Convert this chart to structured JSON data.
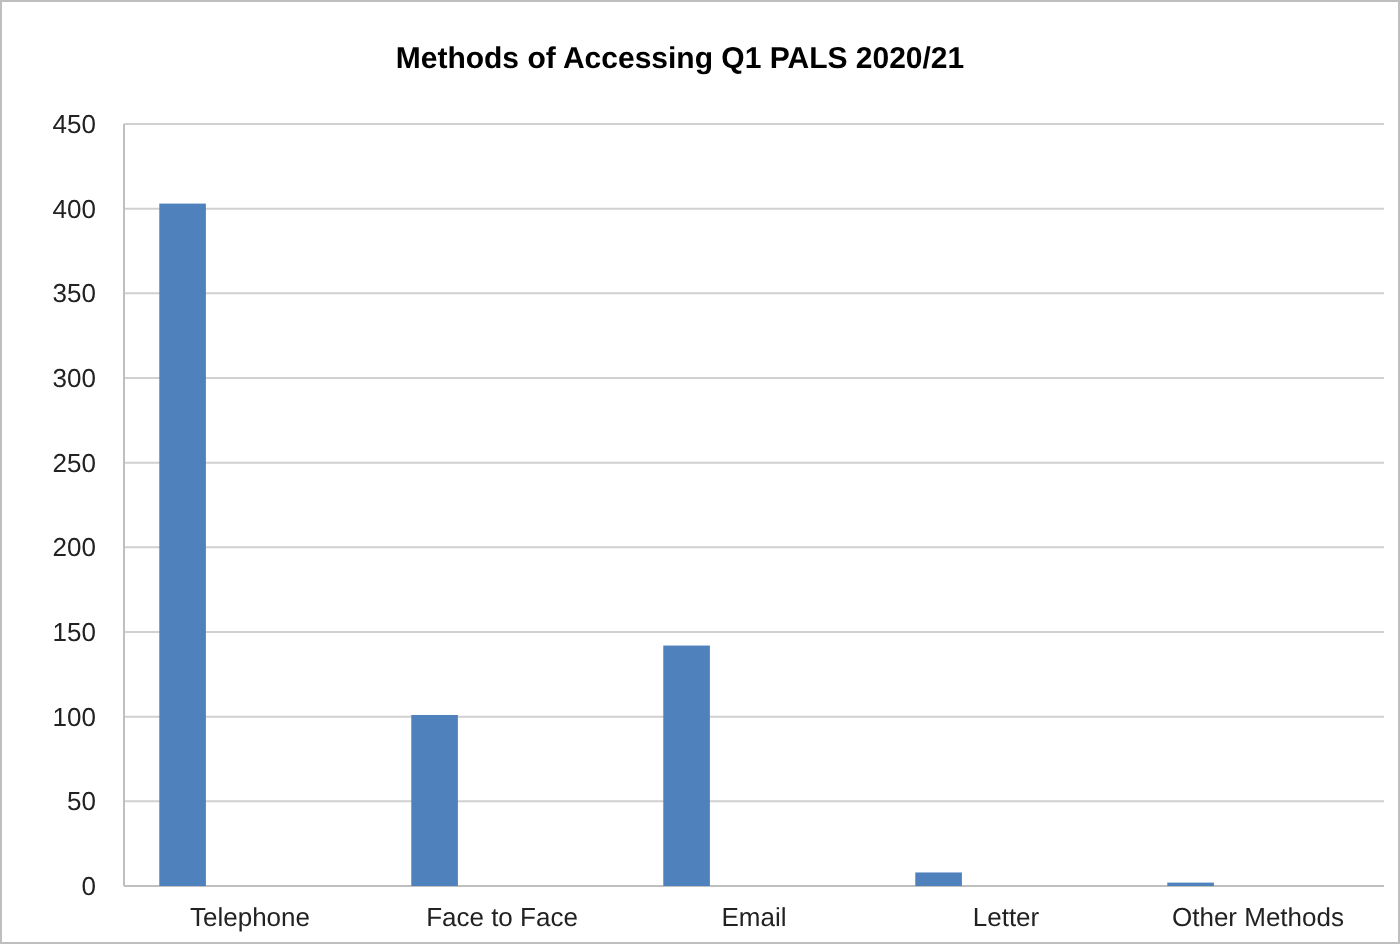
{
  "chart_data": {
    "type": "bar",
    "title": "Methods of Accessing Q1 PALS 2020/21",
    "categories": [
      "Telephone",
      "Face to Face",
      "Email",
      "Letter",
      "Other Methods"
    ],
    "values": [
      403,
      101,
      142,
      8,
      2
    ],
    "color": "#4f81bd",
    "ylim": [
      0,
      450
    ],
    "yticks": [
      0,
      50,
      100,
      150,
      200,
      250,
      300,
      350,
      400,
      450
    ],
    "grid": "y"
  }
}
